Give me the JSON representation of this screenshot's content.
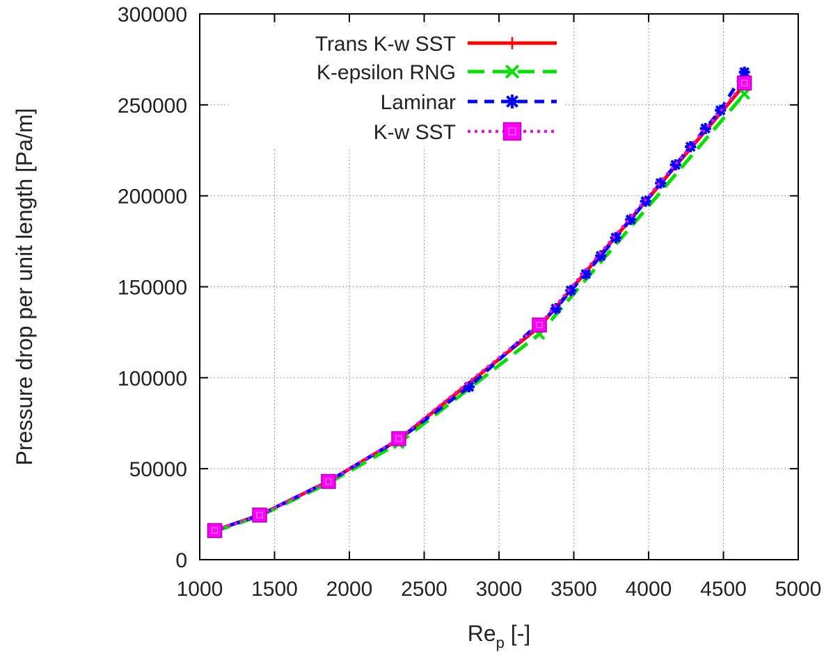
{
  "chart_data": {
    "type": "line",
    "title": "",
    "xlabel_main": "Re",
    "xlabel_sub": "p",
    "xlabel_suffix": " [-]",
    "ylabel": "Pressure drop per unit length [Pa/m]",
    "xlim": [
      1000,
      5000
    ],
    "ylim": [
      0,
      300000
    ],
    "xticks": [
      1000,
      1500,
      2000,
      2500,
      3000,
      3500,
      4000,
      4500,
      5000
    ],
    "yticks": [
      0,
      50000,
      100000,
      150000,
      200000,
      250000,
      300000
    ],
    "grid": true,
    "legend_position": "top-left",
    "series": [
      {
        "name": "Trans K-w SST",
        "color": "#ff0000",
        "dash": "solid",
        "marker": "plus",
        "x": [
          1100,
          1400,
          1860,
          2330,
          3270,
          4640
        ],
        "y": [
          16000,
          24500,
          43000,
          66000,
          128000,
          261000
        ]
      },
      {
        "name": "K-epsilon RNG",
        "color": "#00e000",
        "dash": "long-dash",
        "marker": "cross",
        "x": [
          1100,
          1400,
          1860,
          2330,
          3270,
          4640
        ],
        "y": [
          15500,
          24000,
          42000,
          64000,
          124000,
          256000
        ]
      },
      {
        "name": "Laminar",
        "color": "#0000ff",
        "dash": "short-dash",
        "marker": "star",
        "x": [
          1100,
          1400,
          1860,
          2330,
          2800,
          3270,
          3380,
          3480,
          3580,
          3680,
          3780,
          3880,
          3980,
          4080,
          4180,
          4280,
          4380,
          4480,
          4640
        ],
        "y": [
          16000,
          24500,
          43000,
          66000,
          95000,
          130000,
          138000,
          148000,
          157000,
          167000,
          177000,
          187000,
          197000,
          207000,
          217000,
          227000,
          237000,
          247000,
          268000
        ]
      },
      {
        "name": "K-w SST",
        "color": "#ff00ff",
        "dash": "dotted",
        "marker": "square",
        "x": [
          1100,
          1400,
          1860,
          2330,
          3270,
          4640
        ],
        "y": [
          16000,
          24500,
          43000,
          66500,
          129000,
          262000
        ]
      }
    ]
  }
}
